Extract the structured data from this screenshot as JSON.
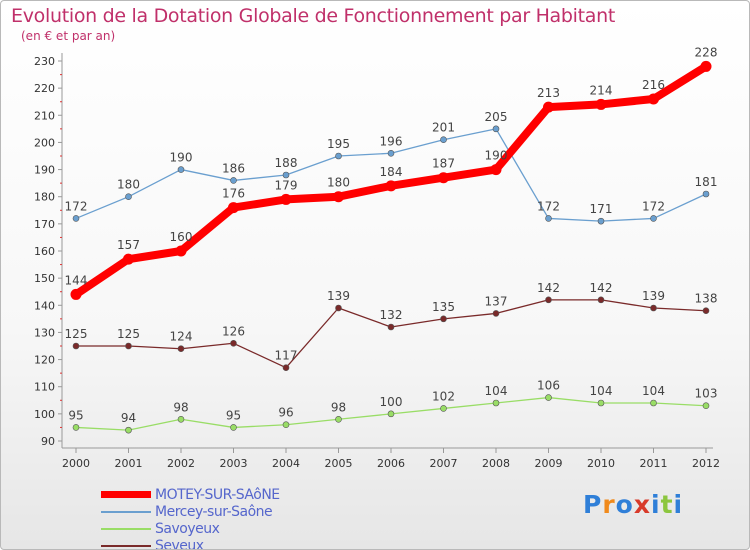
{
  "title": "Evolution de la Dotation Globale de Fonctionnement par Habitant",
  "subtitle": "(en € et par an)",
  "logo": {
    "letters": [
      "P",
      "r",
      "o",
      "x",
      "i",
      "t",
      "i"
    ],
    "colors": [
      "#2f7fd8",
      "#f08a1c",
      "#2f7fd8",
      "#d83a2a",
      "#2f7fd8",
      "#8cc63f",
      "#2f7fd8"
    ]
  },
  "chart_data": {
    "type": "line",
    "x": [
      "2000",
      "2001",
      "2002",
      "2003",
      "2004",
      "2005",
      "2006",
      "2007",
      "2008",
      "2009",
      "2010",
      "2011",
      "2012"
    ],
    "ylim": [
      90,
      230
    ],
    "yticks": [
      "90",
      "100",
      "110",
      "120",
      "130",
      "140",
      "150",
      "160",
      "170",
      "180",
      "190",
      "200",
      "210",
      "220",
      "230"
    ],
    "grid": false,
    "legend_position": "bottom-left",
    "series": [
      {
        "name": "MOTEY-SUR-SAôNE",
        "color": "#ff0000",
        "width": 8,
        "marker": 5.5,
        "values": [
          144,
          157,
          160,
          176,
          179,
          180,
          184,
          187,
          190,
          213,
          214,
          216,
          228
        ]
      },
      {
        "name": "Mercey-sur-Saône",
        "color": "#6a9fcf",
        "width": 1.3,
        "marker": 3,
        "values": [
          172,
          180,
          190,
          186,
          188,
          195,
          196,
          201,
          205,
          172,
          171,
          172,
          181
        ]
      },
      {
        "name": "Savoyeux",
        "color": "#99dd66",
        "width": 1.3,
        "marker": 3,
        "values": [
          95,
          94,
          98,
          95,
          96,
          98,
          100,
          102,
          104,
          106,
          104,
          104,
          103
        ]
      },
      {
        "name": "Seveux",
        "color": "#7a2a2a",
        "width": 1.3,
        "marker": 3,
        "values": [
          125,
          125,
          124,
          126,
          117,
          139,
          132,
          135,
          137,
          142,
          142,
          139,
          138
        ]
      }
    ]
  }
}
